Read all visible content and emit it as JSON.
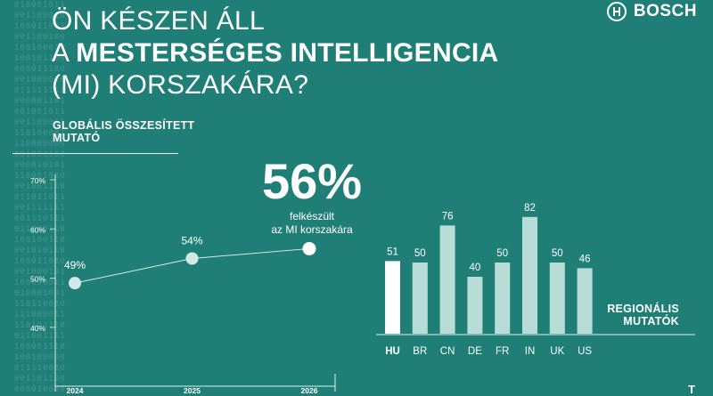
{
  "header": {
    "title_line1": "ÖN KÉSZEN ÁLL",
    "title_line2_prefix": "A",
    "title_line2_bold": "MESTERSÉGES INTELLIGENCIA",
    "title_line3": "(MI) KORSZAKÁRA?",
    "brand_name": "BOSCH"
  },
  "highlight": {
    "value": "56%",
    "caption_line1": "felkészült",
    "caption_line2": "az MI korszakára"
  },
  "footer_mark": "T",
  "colors": {
    "background": "#1f7f77",
    "bar_primary": "#ffffff",
    "bar_secondary": "#b8ddd7",
    "line": "#d8ebe8"
  },
  "chart_data": [
    {
      "type": "line",
      "title": "GLOBÁLIS ÖSSZESÍTETT MUTATÓ",
      "x": [
        "2024",
        "2025",
        "2026"
      ],
      "values": [
        49,
        54,
        56
      ],
      "point_labels": [
        "49%",
        "54%",
        ""
      ],
      "yticks": [
        "70%",
        "60%",
        "50%",
        "40%"
      ],
      "ylim": [
        38,
        72
      ],
      "grid": false
    },
    {
      "type": "bar",
      "title": "REGIONÁLIS MUTATÓK",
      "categories": [
        "HU",
        "BR",
        "CN",
        "DE",
        "FR",
        "IN",
        "UK",
        "US"
      ],
      "values": [
        51,
        50,
        76,
        40,
        50,
        82,
        50,
        46
      ],
      "highlight_category": "HU",
      "ylim": [
        0,
        90
      ]
    }
  ]
}
